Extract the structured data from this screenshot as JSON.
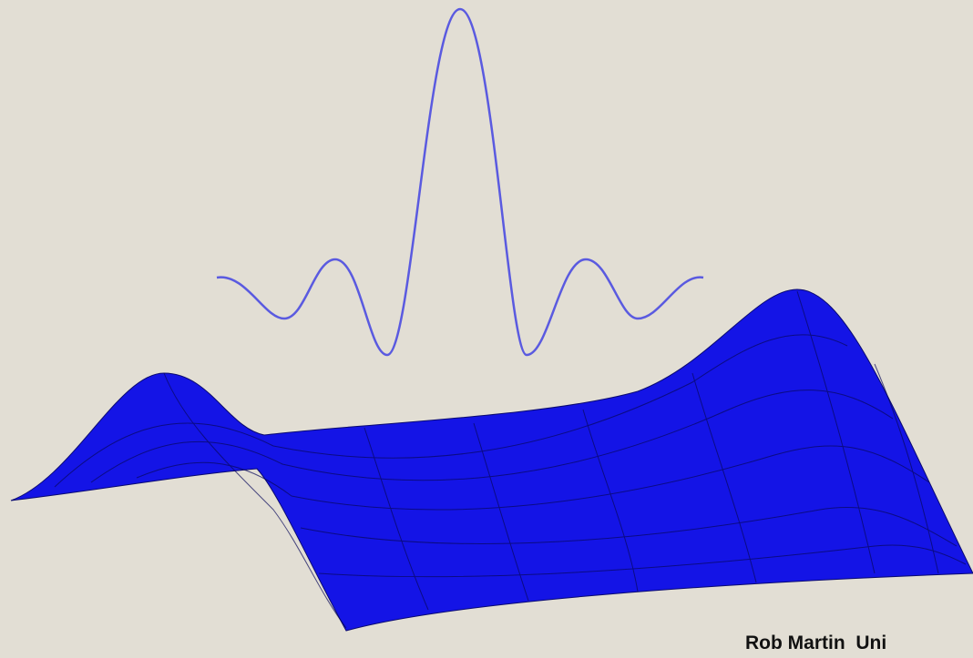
{
  "credit": "Rob Martin  Uni"
}
